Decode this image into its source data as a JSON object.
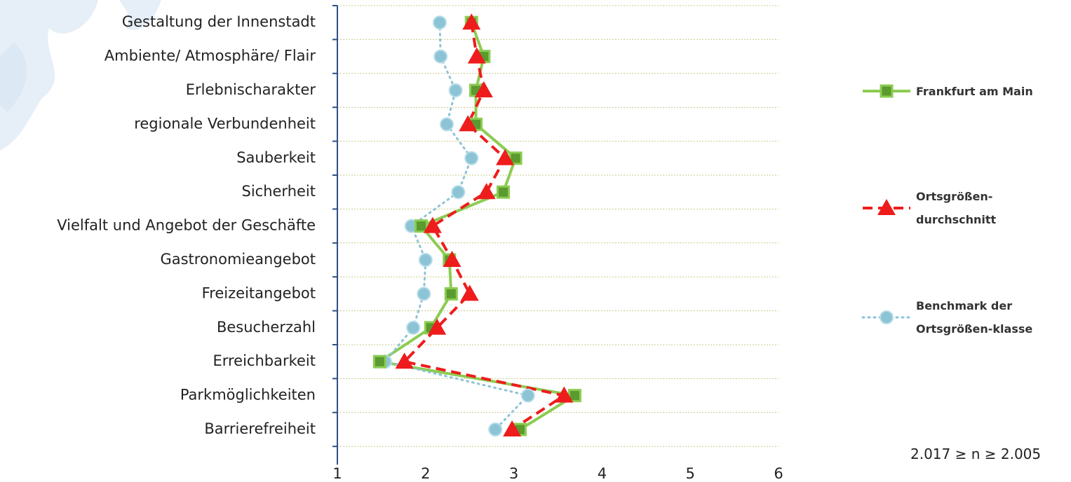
{
  "chart_data": {
    "type": "line",
    "categories": [
      "Gestaltung der Innenstadt",
      "Ambiente/ Atmosphäre/ Flair",
      "Erlebnischarakter",
      "regionale Verbundenheit",
      "Sauberkeit",
      "Sicherheit",
      "Vielfalt und Angebot der Geschäfte",
      "Gastronomieangebot",
      "Freizeitangebot",
      "Besucherzahl",
      "Erreichbarkeit",
      "Parkmöglichkeiten",
      "Barrierefreiheit"
    ],
    "xlim": [
      1,
      6
    ],
    "xticks": [
      1,
      2,
      3,
      4,
      5,
      6
    ],
    "grid": true,
    "annotation": "2.017 ≥ n ≥ 2.005",
    "series": [
      {
        "name": "Frankfurt am Main",
        "color": "#8ccc52",
        "marker": "square",
        "line": "solid",
        "values": [
          2.52,
          2.66,
          2.57,
          2.57,
          3.02,
          2.88,
          1.95,
          2.27,
          2.29,
          2.06,
          1.48,
          3.69,
          3.07
        ]
      },
      {
        "name": "Ortsgrößen-durchschnitt",
        "color": "#ee1c1c",
        "marker": "triangle",
        "line": "dashed",
        "values": [
          2.52,
          2.58,
          2.66,
          2.48,
          2.9,
          2.69,
          2.08,
          2.3,
          2.5,
          2.13,
          1.76,
          3.57,
          2.98
        ]
      },
      {
        "name": "Benchmark der Ortsgrößen-klasse",
        "color": "#8cc4d6",
        "marker": "circle",
        "line": "dotted",
        "values": [
          2.16,
          2.17,
          2.34,
          2.24,
          2.52,
          2.37,
          1.84,
          2.0,
          1.98,
          1.86,
          1.54,
          3.16,
          2.79
        ]
      }
    ]
  }
}
